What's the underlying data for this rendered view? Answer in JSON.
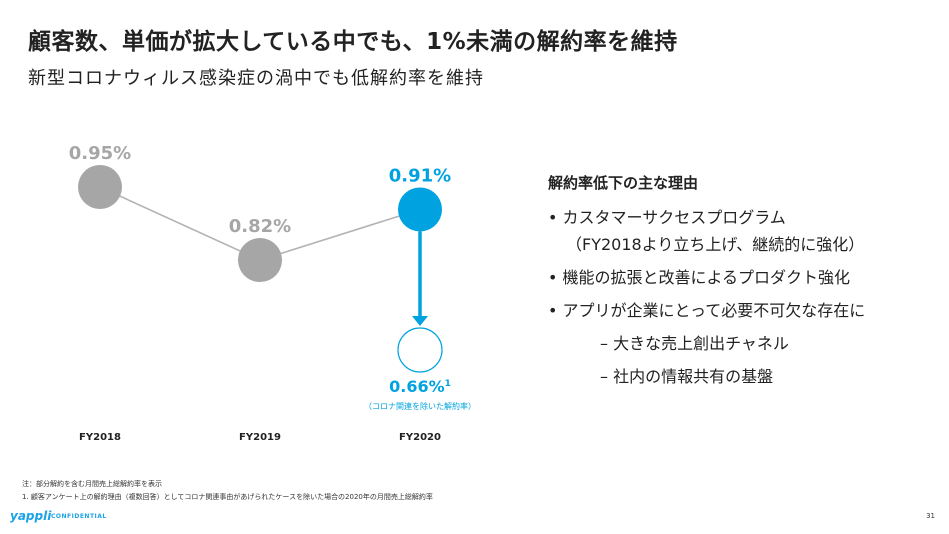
{
  "header": {
    "title": "顧客数、単価が拡大している中でも、1%未満の解約率を維持",
    "subtitle": "新型コロナウィルス感染症の渦中でも低解約率を維持"
  },
  "chart_data": {
    "type": "line",
    "categories": [
      "FY2018",
      "FY2019",
      "FY2020"
    ],
    "values": [
      0.95,
      0.82,
      0.91
    ],
    "data_labels": [
      "0.95%",
      "0.82%",
      "0.91%"
    ],
    "adjusted_value": 0.66,
    "adjusted_label": "0.66%",
    "adjusted_footnote_mark": "1",
    "adjusted_caption": "（コロナ関連を除いた解約率）",
    "colors": {
      "default": "#a6a6a6",
      "highlight": "#00a3e0"
    }
  },
  "reasons": {
    "title": "解約率低下の主な理由",
    "items": [
      {
        "bullet": "•",
        "text": "カスタマーサクセスプログラム",
        "continuation": "（FY2018より立ち上げ、継続的に強化）"
      },
      {
        "bullet": "•",
        "text": "機能の拡張と改善によるプロダクト強化"
      },
      {
        "bullet": "•",
        "text": "アプリが企業にとって必要不可欠な存在に"
      }
    ],
    "subitems": [
      {
        "dash": "–",
        "text": "大きな売上創出チャネル"
      },
      {
        "dash": "–",
        "text": "社内の情報共有の基盤"
      }
    ]
  },
  "notes": [
    "注：部分解約を含む月間売上総解約率を表示",
    "1. 顧客アンケート上の解約理由（複数回答）としてコロナ関連事由があげられたケースを除いた場合の2020年の月間売上総解約率"
  ],
  "footer": {
    "logo": "yappli",
    "confidential": "CONFIDENTIAL",
    "page": "31"
  }
}
